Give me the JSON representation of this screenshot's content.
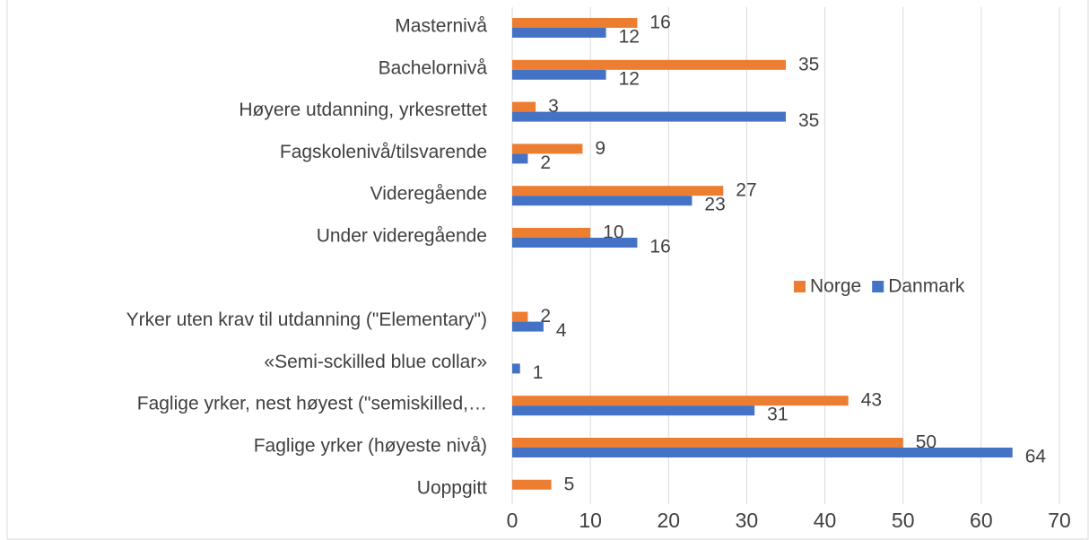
{
  "chart_data": {
    "type": "bar",
    "orientation": "horizontal",
    "categories": [
      "Masternivå",
      "Bachelornivå",
      "Høyere utdanning, yrkesrettet",
      "Fagskolenivå/tilsvarende",
      "Videregående",
      "Under videregående",
      null,
      "Yrker uten krav til utdanning (\"Elementary\")",
      "«Semi-sckilled blue collar»",
      "Faglige yrker, nest høyest (\"semiskilled,…",
      "Faglige yrker (høyeste nivå)",
      "Uoppgitt"
    ],
    "series": [
      {
        "name": "Norge",
        "color": "#ed7d31",
        "values": [
          16,
          35,
          3,
          9,
          27,
          10,
          null,
          2,
          null,
          43,
          50,
          5
        ]
      },
      {
        "name": "Danmark",
        "color": "#4472c4",
        "values": [
          12,
          12,
          35,
          2,
          23,
          16,
          null,
          4,
          1,
          31,
          64,
          null
        ]
      }
    ],
    "xlim": [
      0,
      70
    ],
    "xticks": [
      0,
      10,
      20,
      30,
      40,
      50,
      60,
      70
    ],
    "grid": true
  }
}
